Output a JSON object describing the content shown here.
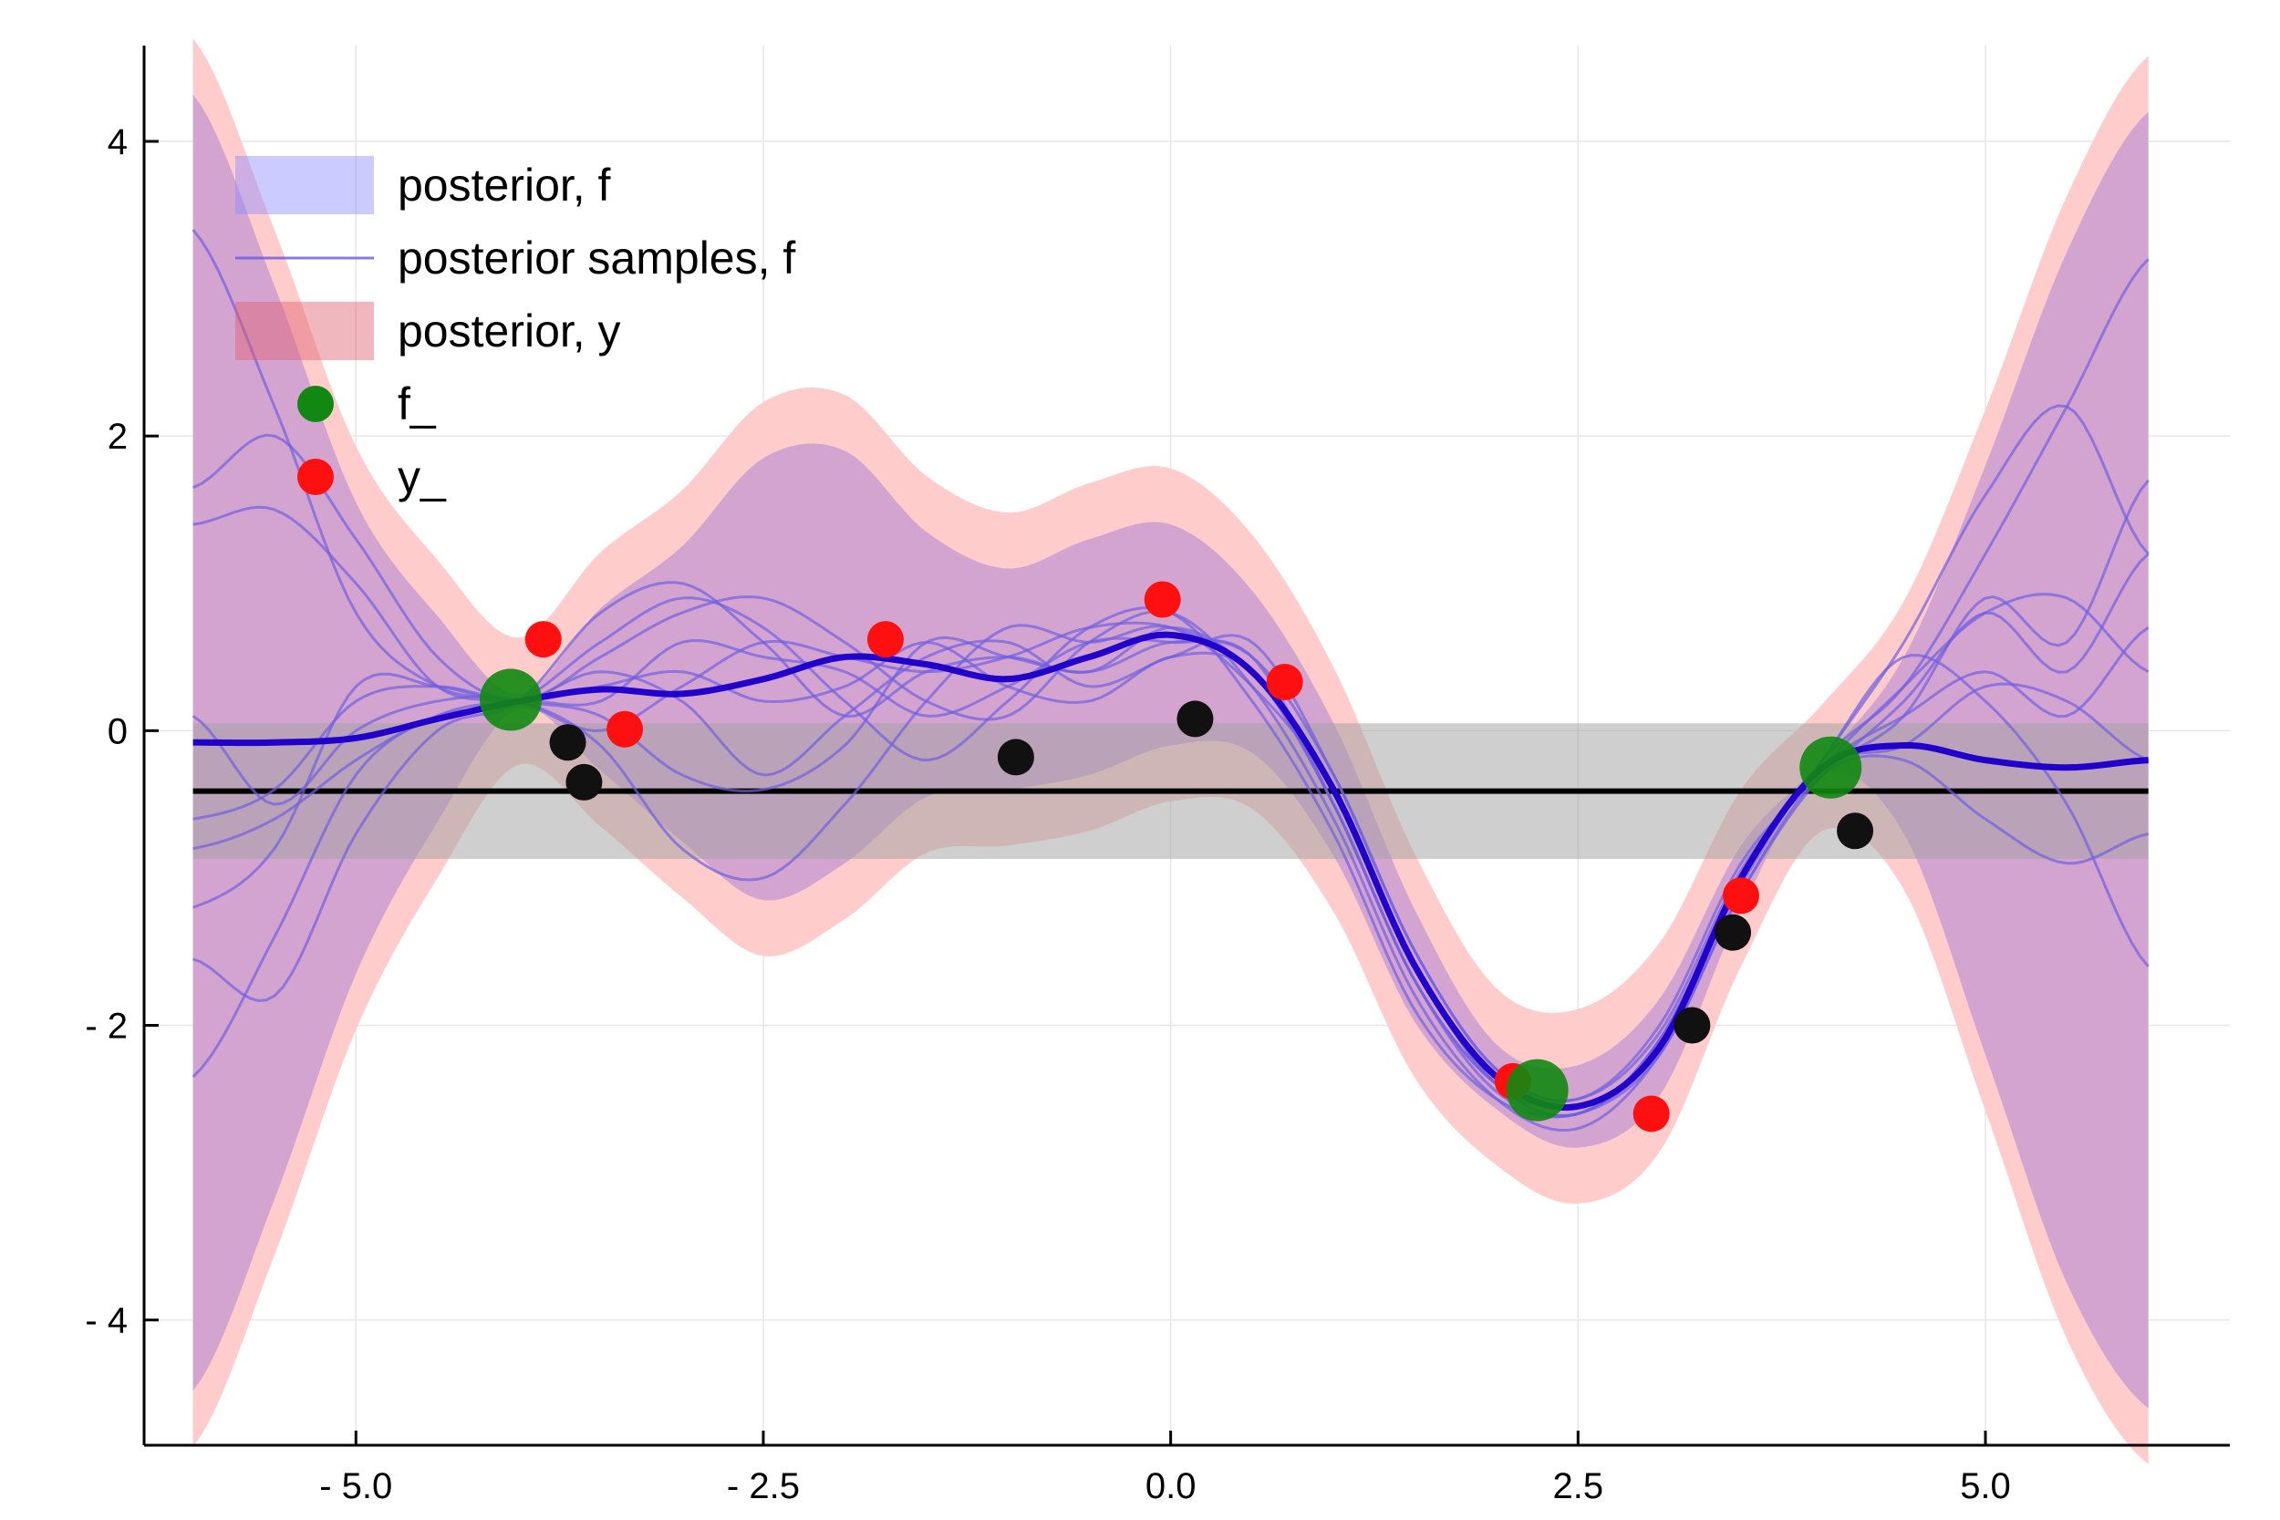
{
  "chart_data": {
    "type": "line",
    "title": "",
    "xlabel": "",
    "ylabel": "",
    "xlim": [
      -6.3,
      6.5
    ],
    "ylim": [
      -4.85,
      4.65
    ],
    "grid": true,
    "legend_position": "top-left",
    "x_ticks": [
      {
        "value": -5.0,
        "label": "- 5.0"
      },
      {
        "value": -2.5,
        "label": "- 2.5"
      },
      {
        "value": 0.0,
        "label": "0.0"
      },
      {
        "value": 2.5,
        "label": "2.5"
      },
      {
        "value": 5.0,
        "label": "5.0"
      }
    ],
    "y_ticks": [
      {
        "value": 4,
        "label": "4"
      },
      {
        "value": 2,
        "label": "2"
      },
      {
        "value": 0,
        "label": "0"
      },
      {
        "value": -2,
        "label": "- 2"
      },
      {
        "value": -4,
        "label": "- 4"
      }
    ],
    "legend": [
      {
        "label": "posterior, f",
        "kind": "band",
        "color": "#8c8cff"
      },
      {
        "label": "posterior samples, f",
        "kind": "line",
        "color": "#6a5ae0"
      },
      {
        "label": "posterior, y",
        "kind": "band",
        "color": "#e06070"
      },
      {
        "label": "f_",
        "kind": "point",
        "color": "#118811"
      },
      {
        "label": "y_",
        "kind": "point",
        "color": "#ff1010"
      }
    ],
    "colors": {
      "posterior_y_band": "#ffcccc",
      "posterior_f_band": "#d4a4d0",
      "mean_line": "#2200cc",
      "sample_lines": "#7060e0",
      "prior_band": "#a0a0a0",
      "prior_mean": "#000000",
      "f_points": "#118811",
      "y_points": "#ff1010",
      "black_points": "#111111"
    },
    "x": [
      -6,
      -5.5,
      -5,
      -4.5,
      -4,
      -3.5,
      -3,
      -2.5,
      -2,
      -1.5,
      -1,
      -0.5,
      0,
      0.5,
      1,
      1.5,
      2,
      2.5,
      3,
      3.5,
      4,
      4.5,
      5,
      5.5,
      6
    ],
    "posterior_mean_f": [
      -0.08,
      -0.08,
      -0.05,
      0.08,
      0.2,
      0.28,
      0.25,
      0.35,
      0.5,
      0.45,
      0.35,
      0.5,
      0.65,
      0.4,
      -0.4,
      -1.6,
      -2.35,
      -2.55,
      -2.15,
      -1.0,
      -0.25,
      -0.1,
      -0.2,
      -0.25,
      -0.2
    ],
    "posterior_f_band_half_width": [
      4.4,
      3.1,
      1.6,
      0.7,
      0.05,
      0.55,
      1.0,
      1.5,
      1.4,
      0.9,
      0.75,
      0.8,
      0.75,
      0.55,
      0.45,
      0.38,
      0.22,
      0.28,
      0.33,
      0.22,
      0.05,
      0.6,
      2.0,
      3.5,
      4.4
    ],
    "posterior_y_extra_width": 0.38,
    "posterior_samples_f": [
      [
        3.4,
        2.2,
        0.8,
        0.3,
        0.2,
        0.0,
        0.3,
        0.6,
        0.5,
        0.4,
        0.5,
        0.7,
        0.7,
        0.4,
        -0.5,
        -1.7,
        -2.4,
        -2.6,
        -2.1,
        -1.0,
        -0.2,
        0.3,
        1.2,
        2.2,
        3.2
      ],
      [
        1.65,
        2.0,
        1.3,
        0.5,
        0.2,
        0.5,
        0.8,
        0.9,
        0.6,
        0.2,
        0.1,
        0.6,
        0.8,
        0.3,
        -0.6,
        -1.8,
        -2.5,
        -2.7,
        -2.2,
        -1.1,
        -0.3,
        0.1,
        0.9,
        0.6,
        1.7
      ],
      [
        1.4,
        1.5,
        1.0,
        0.3,
        0.2,
        0.1,
        -0.3,
        -0.4,
        -0.1,
        0.6,
        0.5,
        0.4,
        0.6,
        0.5,
        -0.3,
        -1.5,
        -2.3,
        -2.5,
        -2.0,
        -0.9,
        -0.3,
        0.2,
        0.8,
        0.4,
        1.2
      ],
      [
        0.1,
        -0.5,
        0.0,
        0.2,
        0.2,
        -0.1,
        -0.8,
        -1.0,
        -0.5,
        0.2,
        0.7,
        0.6,
        0.7,
        0.3,
        -0.4,
        -1.6,
        -2.4,
        -2.6,
        -2.1,
        -1.0,
        -0.2,
        0.5,
        0.2,
        -0.5,
        -1.6
      ],
      [
        -0.6,
        -0.4,
        0.2,
        0.3,
        0.2,
        0.3,
        0.4,
        0.2,
        0.3,
        0.6,
        0.3,
        0.2,
        0.5,
        0.4,
        -0.5,
        -1.7,
        -2.4,
        -2.55,
        -2.15,
        -1.0,
        -0.25,
        0.1,
        0.4,
        0.1,
        0.7
      ],
      [
        -0.8,
        -0.6,
        -0.2,
        0.1,
        0.2,
        0.6,
        0.9,
        0.7,
        0.2,
        -0.2,
        0.2,
        0.7,
        0.8,
        0.2,
        -0.7,
        -1.9,
        -2.5,
        -2.6,
        -2.2,
        -1.1,
        -0.3,
        -0.2,
        -0.6,
        -0.9,
        -0.7
      ],
      [
        -1.2,
        -0.8,
        0.3,
        0.3,
        0.2,
        0.4,
        0.2,
        -0.3,
        0.1,
        0.5,
        0.6,
        0.3,
        0.5,
        0.6,
        -0.3,
        -1.5,
        -2.3,
        -2.5,
        -2.05,
        -0.95,
        -0.25,
        0.3,
        0.8,
        0.9,
        0.4
      ],
      [
        -1.55,
        -1.8,
        -0.7,
        0.0,
        0.2,
        0.8,
        1.0,
        0.6,
        0.1,
        0.4,
        0.5,
        0.4,
        0.7,
        0.4,
        -0.4,
        -1.6,
        -2.4,
        -2.6,
        -2.1,
        -1.0,
        -0.2,
        0.6,
        1.6,
        2.2,
        1.2
      ],
      [
        -2.35,
        -1.4,
        -0.3,
        0.1,
        0.2,
        0.2,
        0.6,
        0.5,
        0.4,
        0.1,
        0.3,
        0.6,
        0.6,
        0.5,
        -0.5,
        -1.7,
        -2.45,
        -2.6,
        -2.15,
        -1.05,
        -0.25,
        -0.1,
        0.3,
        0.2,
        -0.2
      ]
    ],
    "prior_mean": -0.41,
    "prior_band": [
      -0.87,
      0.05
    ],
    "f_points": {
      "x": [
        -4.05,
        2.25,
        4.05
      ],
      "y": [
        0.21,
        -2.44,
        -0.25
      ]
    },
    "y_points": {
      "x": [
        -3.85,
        -3.35,
        -1.75,
        -0.05,
        0.7,
        2.1,
        2.95,
        3.5
      ],
      "y": [
        0.62,
        0.01,
        0.62,
        0.89,
        0.33,
        -2.38,
        -2.6,
        -1.12
      ]
    },
    "black_points": {
      "x": [
        -3.7,
        -3.6,
        -0.95,
        0.15,
        3.2,
        3.45,
        4.2
      ],
      "y": [
        -0.08,
        -0.35,
        -0.18,
        0.08,
        -2.0,
        -1.37,
        -0.68
      ]
    }
  }
}
